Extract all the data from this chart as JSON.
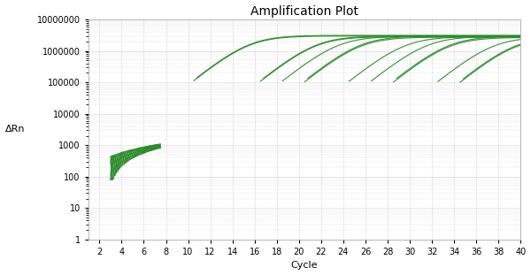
{
  "title": "Amplification Plot",
  "xlabel": "Cycle",
  "ylabel": "ΔRn",
  "xlim": [
    1,
    40
  ],
  "ylim_log": [
    1,
    10000000
  ],
  "xticks": [
    2,
    4,
    6,
    8,
    10,
    12,
    14,
    16,
    18,
    20,
    22,
    24,
    26,
    28,
    30,
    32,
    34,
    36,
    38,
    40
  ],
  "yticks": [
    1,
    10,
    100,
    1000,
    10000,
    100000,
    1000000,
    10000000
  ],
  "line_color": "#2a8a2a",
  "background_color": "#ffffff",
  "grid_color": "#cccccc",
  "title_fontsize": 10,
  "axis_label_fontsize": 8,
  "tick_fontsize": 7,
  "plateau_value": 3000000,
  "curve_groups": [
    {
      "ct": 12,
      "count": 2,
      "plateau_mult": [
        1.0,
        1.05
      ]
    },
    {
      "ct": 18,
      "count": 2,
      "plateau_mult": [
        0.95,
        1.0
      ]
    },
    {
      "ct": 20,
      "count": 1,
      "plateau_mult": [
        0.98
      ]
    },
    {
      "ct": 22,
      "count": 2,
      "plateau_mult": [
        0.92,
        1.0
      ]
    },
    {
      "ct": 26,
      "count": 1,
      "plateau_mult": [
        0.95
      ]
    },
    {
      "ct": 28,
      "count": 1,
      "plateau_mult": [
        0.97
      ]
    },
    {
      "ct": 30,
      "count": 2,
      "plateau_mult": [
        0.9,
        0.98
      ]
    },
    {
      "ct": 34,
      "count": 1,
      "plateau_mult": [
        0.93
      ]
    },
    {
      "ct": 36,
      "count": 2,
      "plateau_mult": [
        0.88,
        0.95
      ]
    }
  ]
}
